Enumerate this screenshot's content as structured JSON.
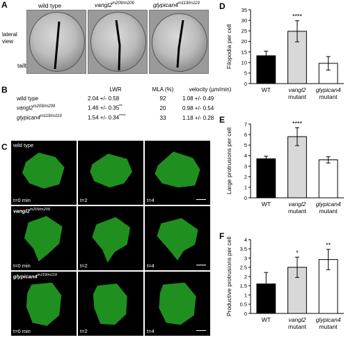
{
  "panel_a": {
    "letter": "A",
    "genotypes": [
      {
        "base": "wild type",
        "sup": ""
      },
      {
        "base": "vangl2",
        "sup": "m209/m209"
      },
      {
        "base": "glypican4",
        "sup": "m119/m119"
      }
    ],
    "side_label": "lateral\nview",
    "tailbud_label": "tailbud"
  },
  "panel_b": {
    "letter": "B",
    "headers": [
      "LWR",
      "MLA (%)",
      "velocity (µm/min)"
    ],
    "rows": [
      {
        "genotype": "wild type",
        "sup": "",
        "lwr": "2.04 +/- 0.58",
        "lwr_sig": "",
        "mla": "92",
        "velocity": "1.08 +/- 0.49"
      },
      {
        "genotype": "vangl2",
        "sup": "m209/m209",
        "lwr": "1.46 +/- 0.35",
        "lwr_sig": "**",
        "mla": "20",
        "velocity": "0.98 +/- 0.54"
      },
      {
        "genotype": "glypican4",
        "sup": "m119/m119",
        "lwr": "1.54 +/- 0.34",
        "lwr_sig": "****",
        "mla": "33",
        "velocity": "1.18 +/- 0.28"
      }
    ]
  },
  "panel_c": {
    "letter": "C",
    "rows": [
      {
        "genotype": "wild type",
        "sup": ""
      },
      {
        "genotype": "vangl2",
        "sup": "m209/m209"
      },
      {
        "genotype": "glypican4",
        "sup": "m119/m119"
      }
    ],
    "timepoints": [
      "t=0 min",
      "t=2",
      "t=4"
    ]
  },
  "chart_data": [
    {
      "panel": "D",
      "type": "bar",
      "ylabel": "Filopodia per cell",
      "ylim": [
        0,
        35
      ],
      "yticks": [
        0,
        5,
        10,
        15,
        20,
        25,
        30,
        35
      ],
      "categories": [
        [
          "WT"
        ],
        [
          "vangl2",
          "mutant"
        ],
        [
          "glypican4",
          "mutant"
        ]
      ],
      "values": [
        13.2,
        24.8,
        9.6
      ],
      "errors": [
        2.2,
        5.0,
        3.2
      ],
      "significance": [
        "",
        "****",
        ""
      ],
      "colors": [
        "#000000",
        "#d8d8d8",
        "#ffffff"
      ],
      "grid": false
    },
    {
      "panel": "E",
      "type": "bar",
      "ylabel": "Large protrusions per cell",
      "ylim": [
        0,
        7
      ],
      "yticks": [
        0,
        1,
        2,
        3,
        4,
        5,
        6,
        7
      ],
      "categories": [
        [
          "WT"
        ],
        [
          "vangl2",
          "mutant"
        ],
        [
          "glypican4",
          "mutant"
        ]
      ],
      "values": [
        3.7,
        5.8,
        3.6
      ],
      "errors": [
        0.25,
        0.85,
        0.3
      ],
      "significance": [
        "",
        "****",
        ""
      ],
      "colors": [
        "#000000",
        "#d8d8d8",
        "#ffffff"
      ],
      "grid": false
    },
    {
      "panel": "F",
      "type": "bar",
      "ylabel": "Productive protrusions per cell",
      "ylim": [
        0,
        4
      ],
      "yticks": [
        0,
        0.5,
        1,
        1.5,
        2,
        2.5,
        3,
        3.5,
        4
      ],
      "categories": [
        [
          "WT"
        ],
        [
          "vangl2",
          "mutant"
        ],
        [
          "glypican4",
          "mutant"
        ]
      ],
      "values": [
        1.6,
        2.5,
        2.92
      ],
      "errors": [
        0.62,
        0.55,
        0.55
      ],
      "significance": [
        "",
        "*",
        "**"
      ],
      "colors": [
        "#000000",
        "#d8d8d8",
        "#ffffff"
      ],
      "grid": false
    }
  ]
}
